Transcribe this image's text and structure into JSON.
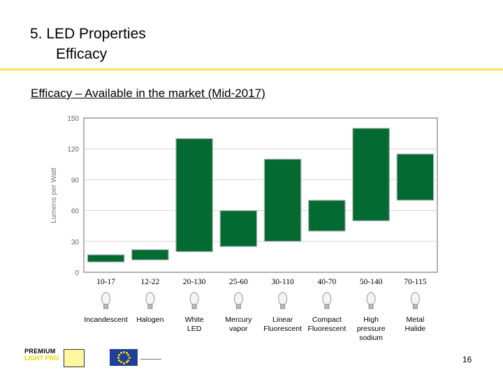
{
  "slide": {
    "title_line1": "5. LED Properties",
    "title_line2": "Efficacy",
    "subtitle": "Efficacy – Available in the market (Mid-2017)",
    "page_number": "16"
  },
  "colors": {
    "bar": "#036b32",
    "rule": "#f2e64a",
    "grid": "#d6d6d6"
  },
  "chart_data": {
    "type": "bar",
    "subtype": "floating-range",
    "ylabel": "Lumens per Watt",
    "ylim": [
      0,
      150
    ],
    "yticks": [
      0,
      30,
      60,
      90,
      120,
      150
    ],
    "grid": true,
    "categories": [
      "Incandescent",
      "Halogen",
      "White LED",
      "Mercury vapor",
      "Linear Fluorescent",
      "Compact Fluorescent",
      "High pressure sodium",
      "Metal Halide"
    ],
    "category_labels": [
      "Incandescent",
      "Halogen",
      "White\nLED",
      "Mercury\nvapor",
      "Linear\nFluorescent",
      "Compact\nFluorescent",
      "High\npressure\nsodium",
      "Metal\nHalide"
    ],
    "range_labels": [
      "10-17",
      "12-22",
      "20-130",
      "25-60",
      "30-110",
      "40-70",
      "50-140",
      "70-115"
    ],
    "ranges": [
      [
        10,
        17
      ],
      [
        12,
        22
      ],
      [
        20,
        130
      ],
      [
        25,
        60
      ],
      [
        30,
        110
      ],
      [
        40,
        70
      ],
      [
        50,
        140
      ],
      [
        70,
        115
      ]
    ],
    "icons": [
      "bulb-icon",
      "halogen-bulb-icon",
      "led-bulb-icon",
      "mercury-lamp-icon",
      "linear-tube-icon",
      "cfl-icon",
      "sodium-lamp-icon",
      "metal-halide-icon"
    ]
  }
}
